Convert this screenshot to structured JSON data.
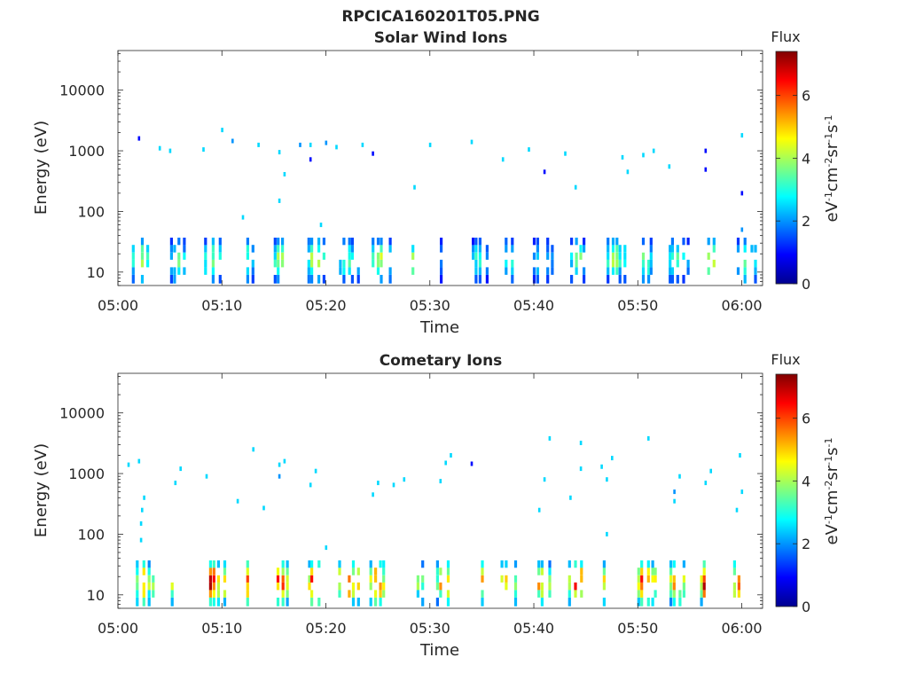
{
  "figure_title": "RPCICA160201T05.PNG",
  "colorbar": {
    "title": "Flux",
    "unit_html": "eV<tspan baseline-shift='super' font-size='11'>-1</tspan>cm<tspan baseline-shift='super' font-size='11'>-2</tspan>sr<tspan baseline-shift='super' font-size='11'>-1</tspan>s<tspan baseline-shift='super' font-size='11'>-1</tspan>",
    "unit_text": "eV-1cm-2sr-1s-1",
    "range": [
      0,
      7.4
    ],
    "ticks": [
      0,
      2,
      4,
      6
    ],
    "colormap": "jet"
  },
  "chart_data": [
    {
      "type": "heatmap",
      "title": "Solar Wind Ions",
      "xlabel": "Time",
      "ylabel": "Energy (eV)",
      "x_ticks": [
        "05:00",
        "05:10",
        "05:20",
        "05:30",
        "05:40",
        "05:50",
        "06:00"
      ],
      "y_scale": "log",
      "y_ticks": [
        10,
        100,
        1000,
        10000
      ],
      "y_tick_labels": [
        "10",
        "100",
        "1000",
        "10000"
      ],
      "xlim_minutes": [
        0,
        62
      ],
      "ylim": [
        6,
        45000
      ],
      "series": [
        {
          "name": "low-energy bursts",
          "minutes": [
            2,
            5.5,
            8.8,
            12,
            15.5,
            18.8,
            21.8,
            25,
            28,
            31.5,
            34.5,
            37.5,
            40.5,
            44,
            47.5,
            50.5,
            53.5,
            56.8,
            60
          ],
          "energy_range_eV": [
            6,
            35
          ],
          "peak_flux": [
            4,
            3.5,
            4,
            3.5,
            4,
            4,
            3.5,
            4,
            4,
            3,
            3,
            3,
            3,
            3.5,
            4,
            3.5,
            3.5,
            4,
            4
          ]
        },
        {
          "name": "scattered high-energy counts",
          "points": [
            [
              2,
              1600,
              1
            ],
            [
              4,
              1100,
              2.5
            ],
            [
              5,
              1000,
              2.5
            ],
            [
              8.2,
              1050,
              2.5
            ],
            [
              10,
              2200,
              2.5
            ],
            [
              11,
              1450,
              2
            ],
            [
              13.5,
              1250,
              2.5
            ],
            [
              15.5,
              950,
              2.5
            ],
            [
              16,
              410,
              2.5
            ],
            [
              17.5,
              1250,
              2
            ],
            [
              18.5,
              1250,
              2.5
            ],
            [
              18.5,
              720,
              1
            ],
            [
              20,
              1350,
              2
            ],
            [
              21,
              1150,
              2.5
            ],
            [
              23.5,
              1250,
              2.5
            ],
            [
              24.5,
              900,
              1
            ],
            [
              30,
              1250,
              2.5
            ],
            [
              34,
              1400,
              2.5
            ],
            [
              37,
              720,
              2.5
            ],
            [
              39.5,
              1050,
              2.5
            ],
            [
              41,
              450,
              1
            ],
            [
              43,
              900,
              2.5
            ],
            [
              48.5,
              780,
              2.5
            ],
            [
              49,
              450,
              2.5
            ],
            [
              50.5,
              850,
              2.5
            ],
            [
              51.5,
              1000,
              2.5
            ],
            [
              53,
              550,
              2.5
            ],
            [
              56.5,
              1000,
              1
            ],
            [
              56.5,
              490,
              1
            ],
            [
              60,
              1800,
              2.5
            ],
            [
              60,
              200,
              1
            ],
            [
              28.5,
              250,
              2.5
            ],
            [
              15.5,
              150,
              2.5
            ],
            [
              12,
              80,
              2.5
            ],
            [
              19.5,
              60,
              2.5
            ],
            [
              44,
              250,
              2.5
            ],
            [
              60,
              50,
              2
            ]
          ]
        }
      ]
    },
    {
      "type": "heatmap",
      "title": "Cometary Ions",
      "xlabel": "Time",
      "ylabel": "Energy (eV)",
      "x_ticks": [
        "05:00",
        "05:10",
        "05:20",
        "05:30",
        "05:40",
        "05:50",
        "06:00"
      ],
      "y_scale": "log",
      "y_ticks": [
        10,
        100,
        1000,
        10000
      ],
      "y_tick_labels": [
        "10",
        "100",
        "1000",
        "10000"
      ],
      "xlim_minutes": [
        0,
        62
      ],
      "ylim": [
        6,
        45000
      ],
      "series": [
        {
          "name": "low-energy bursts",
          "minutes": [
            2.2,
            5.8,
            8.8,
            12,
            15.5,
            18.8,
            21.8,
            24.8,
            28,
            31.2,
            34.5,
            37.5,
            40.5,
            44,
            47.2,
            50.5,
            53.5,
            56.5,
            59.8
          ],
          "energy_range_eV": [
            6,
            40
          ],
          "peak_flux": [
            5.5,
            6,
            6.5,
            6,
            6,
            6,
            6.5,
            6,
            5,
            5,
            5,
            5.5,
            5,
            6,
            6.5,
            6,
            5.5,
            6.5,
            6.5
          ]
        },
        {
          "name": "scattered high-energy counts",
          "points": [
            [
              1,
              1400,
              2.5
            ],
            [
              2,
              1600,
              2.5
            ],
            [
              2.5,
              400,
              2.5
            ],
            [
              2.3,
              250,
              2.5
            ],
            [
              2.2,
              150,
              2.5
            ],
            [
              2.2,
              80,
              2.5
            ],
            [
              5.5,
              700,
              2.5
            ],
            [
              6,
              1200,
              2.5
            ],
            [
              8.5,
              900,
              2.5
            ],
            [
              11.5,
              350,
              2.5
            ],
            [
              13,
              2500,
              2.5
            ],
            [
              14,
              270,
              2.5
            ],
            [
              15.5,
              1400,
              2.5
            ],
            [
              16,
              1600,
              2.5
            ],
            [
              15.5,
              900,
              2
            ],
            [
              18.5,
              650,
              2.5
            ],
            [
              19,
              1100,
              2.5
            ],
            [
              25,
              700,
              2.5
            ],
            [
              26.5,
              650,
              2.5
            ],
            [
              27.5,
              800,
              2.5
            ],
            [
              31,
              750,
              2.5
            ],
            [
              31.5,
              1500,
              2.5
            ],
            [
              32,
              2000,
              2.5
            ],
            [
              34,
              1450,
              1
            ],
            [
              41.5,
              3800,
              2.5
            ],
            [
              41,
              800,
              2.5
            ],
            [
              43.5,
              400,
              2.5
            ],
            [
              44.5,
              3200,
              2.5
            ],
            [
              44.5,
              1200,
              2.5
            ],
            [
              46.5,
              1300,
              2.5
            ],
            [
              47,
              800,
              2.5
            ],
            [
              47.5,
              1800,
              2.5
            ],
            [
              51,
              3800,
              2.5
            ],
            [
              53.5,
              500,
              2
            ],
            [
              53.5,
              350,
              2.5
            ],
            [
              54,
              900,
              2.5
            ],
            [
              56.5,
              700,
              2.5
            ],
            [
              57,
              1100,
              2.5
            ],
            [
              59.8,
              2000,
              2.5
            ],
            [
              59.5,
              250,
              2.5
            ],
            [
              60,
              500,
              2.5
            ],
            [
              40.5,
              250,
              2.5
            ],
            [
              47,
              100,
              2.5
            ],
            [
              20,
              60,
              2.5
            ],
            [
              24.5,
              450,
              2.5
            ]
          ]
        }
      ]
    }
  ]
}
